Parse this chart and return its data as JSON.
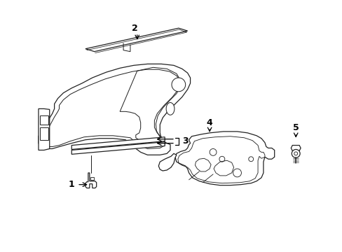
{
  "background_color": "#ffffff",
  "line_color": "#222222",
  "line_width": 0.9,
  "figsize": [
    4.89,
    3.6
  ],
  "dpi": 100
}
